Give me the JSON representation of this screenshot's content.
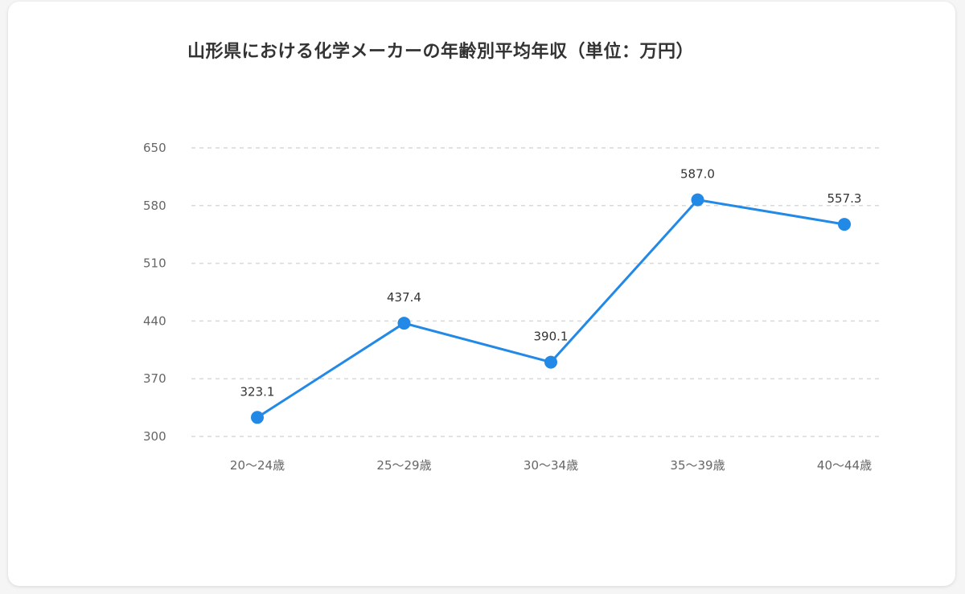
{
  "chart_data": {
    "type": "line",
    "title": "山形県における化学メーカーの年齢別平均年収（単位：万円）",
    "xlabel": "",
    "ylabel": "",
    "categories": [
      "20〜24歳",
      "25〜29歳",
      "30〜34歳",
      "35〜39歳",
      "40〜44歳"
    ],
    "series": [
      {
        "values": [
          323.1,
          437.4,
          390.1,
          587.0,
          557.3
        ]
      }
    ],
    "data_labels": [
      "323.1",
      "437.4",
      "390.1",
      "587.0",
      "557.3"
    ],
    "y_ticks": [
      "300",
      "370",
      "440",
      "510",
      "580",
      "650"
    ],
    "ylim": [
      300,
      650
    ],
    "grid": true,
    "legend": "none",
    "colors": {
      "line": "#2389e6",
      "grid": "#d9d9d9"
    }
  }
}
